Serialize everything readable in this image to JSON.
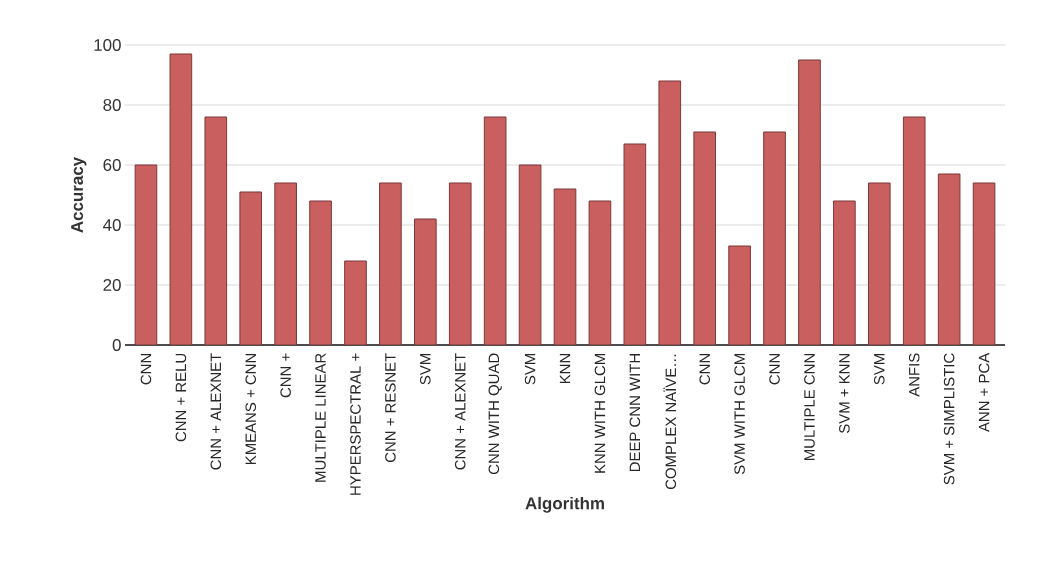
{
  "chart_data": {
    "type": "bar",
    "xlabel": "Algorithm",
    "ylabel": "Accuracy",
    "categories": [
      "CNN",
      "CNN + RELU",
      "CNN + ALEXNET",
      "KMEANS + CNN",
      "CNN +",
      "MULTIPLE LINEAR",
      "HYPERSPECTRAL +",
      "CNN + RESNET",
      "SVM",
      "CNN + ALEXNET",
      "CNN WITH QUAD",
      "SVM",
      "KNN",
      "KNN WITH GLCM",
      "DEEP CNN WITH",
      "COMPLEX NAÏVE…",
      "CNN",
      "SVM WITH GLCM",
      "CNN",
      "MULTIPLE CNN",
      "SVM + KNN",
      "SVM",
      "ANFIS",
      "SVM + SIMPLISTIC",
      "ANN + PCA"
    ],
    "values": [
      60,
      97,
      76,
      51,
      54,
      48,
      28,
      54,
      42,
      54,
      76,
      60,
      52,
      48,
      67,
      88,
      71,
      33,
      71,
      95,
      48,
      54,
      76,
      57,
      54
    ],
    "color": "#c95f5e",
    "ylim": [
      0,
      100
    ],
    "yticks": [
      0,
      20,
      40,
      60,
      80,
      100
    ],
    "grid": "y"
  }
}
